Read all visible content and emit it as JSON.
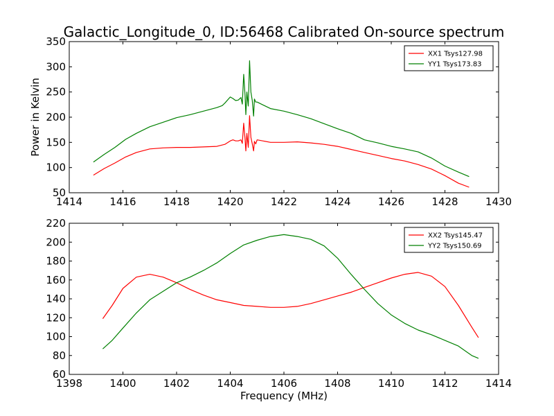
{
  "figure": {
    "title": "Galactic_Longitude_0, ID:56468 Calibrated On-source spectrum",
    "background": "#ffffff"
  },
  "chart_data": [
    {
      "type": "line",
      "xlabel": "",
      "ylabel": "Power in Kelvin",
      "xlim": [
        1414,
        1430
      ],
      "ylim": [
        50,
        350
      ],
      "xticks": [
        1414,
        1416,
        1418,
        1420,
        1422,
        1424,
        1426,
        1428,
        1430
      ],
      "yticks": [
        50,
        100,
        150,
        200,
        250,
        300,
        350
      ],
      "grid": false,
      "legend_position": "top-right",
      "series": [
        {
          "name": "XX1 Tsys127.98",
          "color": "#ff0000",
          "points": [
            [
              1414.9,
              85
            ],
            [
              1415.3,
              98
            ],
            [
              1415.7,
              109
            ],
            [
              1416.1,
              121
            ],
            [
              1416.5,
              130
            ],
            [
              1417.0,
              137
            ],
            [
              1417.5,
              139
            ],
            [
              1418.0,
              140
            ],
            [
              1418.5,
              140
            ],
            [
              1419.0,
              141
            ],
            [
              1419.5,
              142
            ],
            [
              1419.8,
              146
            ],
            [
              1420.0,
              153
            ],
            [
              1420.1,
              155
            ],
            [
              1420.2,
              153
            ],
            [
              1420.3,
              153
            ],
            [
              1420.4,
              155
            ],
            [
              1420.45,
              148
            ],
            [
              1420.5,
              188
            ],
            [
              1420.55,
              158
            ],
            [
              1420.58,
              133
            ],
            [
              1420.62,
              168
            ],
            [
              1420.67,
              140
            ],
            [
              1420.72,
              203
            ],
            [
              1420.77,
              160
            ],
            [
              1420.82,
              147
            ],
            [
              1420.87,
              133
            ],
            [
              1420.9,
              152
            ],
            [
              1420.95,
              147
            ],
            [
              1421.0,
              155
            ],
            [
              1421.5,
              150
            ],
            [
              1422.0,
              150
            ],
            [
              1422.5,
              151
            ],
            [
              1423.0,
              149
            ],
            [
              1423.5,
              146
            ],
            [
              1424.0,
              142
            ],
            [
              1424.5,
              136
            ],
            [
              1425.0,
              130
            ],
            [
              1425.5,
              124
            ],
            [
              1426.0,
              118
            ],
            [
              1426.5,
              113
            ],
            [
              1427.0,
              106
            ],
            [
              1427.5,
              97
            ],
            [
              1428.0,
              84
            ],
            [
              1428.5,
              69
            ],
            [
              1428.9,
              61
            ]
          ]
        },
        {
          "name": "YY1 Tsys173.83",
          "color": "#008000",
          "points": [
            [
              1414.9,
              111
            ],
            [
              1415.3,
              126
            ],
            [
              1415.7,
              140
            ],
            [
              1416.1,
              156
            ],
            [
              1416.5,
              168
            ],
            [
              1417.0,
              181
            ],
            [
              1417.5,
              190
            ],
            [
              1418.0,
              199
            ],
            [
              1418.5,
              205
            ],
            [
              1419.0,
              212
            ],
            [
              1419.5,
              219
            ],
            [
              1419.7,
              223
            ],
            [
              1419.8,
              228
            ],
            [
              1420.0,
              240
            ],
            [
              1420.1,
              237
            ],
            [
              1420.2,
              233
            ],
            [
              1420.3,
              234
            ],
            [
              1420.4,
              239
            ],
            [
              1420.45,
              226
            ],
            [
              1420.5,
              285
            ],
            [
              1420.55,
              245
            ],
            [
              1420.58,
              205
            ],
            [
              1420.62,
              250
            ],
            [
              1420.67,
              222
            ],
            [
              1420.72,
              312
            ],
            [
              1420.77,
              250
            ],
            [
              1420.82,
              233
            ],
            [
              1420.87,
              202
            ],
            [
              1420.9,
              236
            ],
            [
              1420.95,
              230
            ],
            [
              1421.0,
              230
            ],
            [
              1421.5,
              217
            ],
            [
              1422.0,
              212
            ],
            [
              1422.5,
              205
            ],
            [
              1423.0,
              197
            ],
            [
              1423.5,
              187
            ],
            [
              1424.0,
              177
            ],
            [
              1424.5,
              168
            ],
            [
              1425.0,
              155
            ],
            [
              1425.5,
              149
            ],
            [
              1426.0,
              142
            ],
            [
              1426.5,
              137
            ],
            [
              1427.0,
              131
            ],
            [
              1427.5,
              119
            ],
            [
              1428.0,
              103
            ],
            [
              1428.5,
              91
            ],
            [
              1428.9,
              82
            ]
          ]
        }
      ]
    },
    {
      "type": "line",
      "xlabel": "Frequency (MHz)",
      "ylabel": "",
      "xlim": [
        1398,
        1414
      ],
      "ylim": [
        60,
        220
      ],
      "xticks": [
        1398,
        1400,
        1402,
        1404,
        1406,
        1408,
        1410,
        1412,
        1414
      ],
      "yticks": [
        60,
        80,
        100,
        120,
        140,
        160,
        180,
        200,
        220
      ],
      "grid": false,
      "legend_position": "top-right",
      "series": [
        {
          "name": "XX2 Tsys145.47",
          "color": "#ff0000",
          "points": [
            [
              1399.25,
              119
            ],
            [
              1399.6,
              133
            ],
            [
              1400.0,
              151
            ],
            [
              1400.5,
              163
            ],
            [
              1401.0,
              166
            ],
            [
              1401.5,
              163
            ],
            [
              1402.0,
              157
            ],
            [
              1402.5,
              150
            ],
            [
              1403.0,
              144
            ],
            [
              1403.5,
              139
            ],
            [
              1404.0,
              136
            ],
            [
              1404.5,
              133
            ],
            [
              1405.0,
              132
            ],
            [
              1405.5,
              131
            ],
            [
              1406.0,
              131
            ],
            [
              1406.5,
              132
            ],
            [
              1407.0,
              135
            ],
            [
              1407.5,
              139
            ],
            [
              1408.0,
              143
            ],
            [
              1408.5,
              147
            ],
            [
              1409.0,
              152
            ],
            [
              1409.5,
              157
            ],
            [
              1410.0,
              162
            ],
            [
              1410.5,
              166
            ],
            [
              1411.0,
              168
            ],
            [
              1411.5,
              164
            ],
            [
              1412.0,
              153
            ],
            [
              1412.5,
              133
            ],
            [
              1413.0,
              110
            ],
            [
              1413.25,
              99
            ]
          ]
        },
        {
          "name": "YY2 Tsys150.69",
          "color": "#008000",
          "points": [
            [
              1399.25,
              87
            ],
            [
              1399.6,
              96
            ],
            [
              1400.0,
              109
            ],
            [
              1400.5,
              125
            ],
            [
              1401.0,
              139
            ],
            [
              1401.5,
              148
            ],
            [
              1402.0,
              157
            ],
            [
              1402.5,
              163
            ],
            [
              1403.0,
              170
            ],
            [
              1403.5,
              178
            ],
            [
              1404.0,
              188
            ],
            [
              1404.5,
              197
            ],
            [
              1405.0,
              202
            ],
            [
              1405.5,
              206
            ],
            [
              1406.0,
              208
            ],
            [
              1406.5,
              206
            ],
            [
              1407.0,
              203
            ],
            [
              1407.5,
              196
            ],
            [
              1408.0,
              183
            ],
            [
              1408.5,
              166
            ],
            [
              1409.0,
              150
            ],
            [
              1409.5,
              135
            ],
            [
              1410.0,
              123
            ],
            [
              1410.5,
              114
            ],
            [
              1411.0,
              107
            ],
            [
              1411.5,
              102
            ],
            [
              1412.0,
              96
            ],
            [
              1412.5,
              90
            ],
            [
              1413.0,
              80
            ],
            [
              1413.25,
              77
            ]
          ]
        }
      ]
    }
  ]
}
